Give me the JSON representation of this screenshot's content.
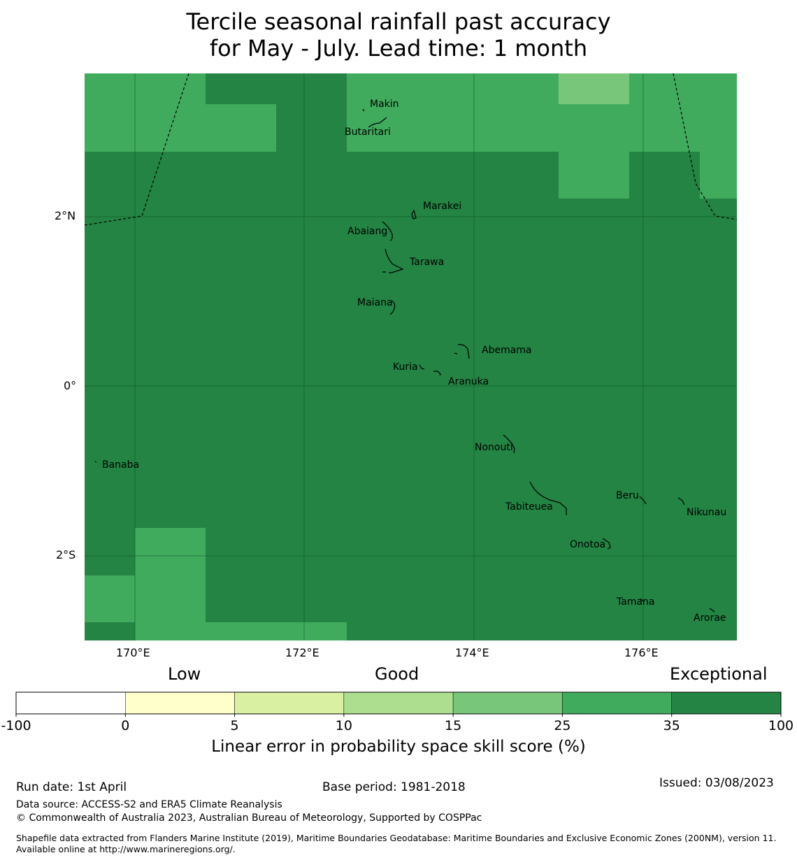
{
  "title": {
    "line1": "Tercile seasonal rainfall past accuracy",
    "line2": "for May - July. Lead time: 1 month"
  },
  "map": {
    "lat_ticks": [
      "2°N",
      "0°",
      "2°S"
    ],
    "lon_ticks": [
      "170°E",
      "172°E",
      "174°E",
      "176°E"
    ],
    "islands": [
      "Makin",
      "Butaritari",
      "Marakei",
      "Abaiang",
      "Tarawa",
      "Maiana",
      "Abemama",
      "Kuria",
      "Aranuka",
      "Nonouti",
      "Banaba",
      "Tabiteuea",
      "Beru",
      "Nikunau",
      "Onotoa",
      "Tamana",
      "Arorae"
    ]
  },
  "legend": {
    "category_labels": [
      "Low",
      "Good",
      "Exceptional"
    ],
    "bins": [
      {
        "from": "-100",
        "to": "0",
        "color": "#ffffff"
      },
      {
        "from": "0",
        "to": "5",
        "color": "#ffffcc"
      },
      {
        "from": "5",
        "to": "10",
        "color": "#d9f0a3"
      },
      {
        "from": "10",
        "to": "15",
        "color": "#addd8e"
      },
      {
        "from": "15",
        "to": "25",
        "color": "#78c679"
      },
      {
        "from": "25",
        "to": "35",
        "color": "#41ab5d"
      },
      {
        "from": "35",
        "to": "100",
        "color": "#238443"
      }
    ],
    "tick_labels": [
      "-100",
      "0",
      "5",
      "10",
      "15",
      "25",
      "35",
      "100"
    ],
    "axis_label": "Linear error in probability space skill score (%)"
  },
  "footer": {
    "run_date": "Run date: 1st April",
    "base_period": "Base period: 1981-2018",
    "issued": "Issued: 03/08/2023",
    "data_source": "Data source: ACCESS-S2 and ERA5 Climate Reanalysis",
    "copyright": "© Commonwealth of Australia 2023, Australian Bureau of Meteorology, Supported by COSPPac",
    "shapefile": "Shapefile data extracted from Flanders Marine Institute (2019), Maritime Boundaries Geodatabase: Maritime Boundaries and Exclusive Economic Zones (200NM), version 11. Available online at http://www.marineregions.org/."
  }
}
